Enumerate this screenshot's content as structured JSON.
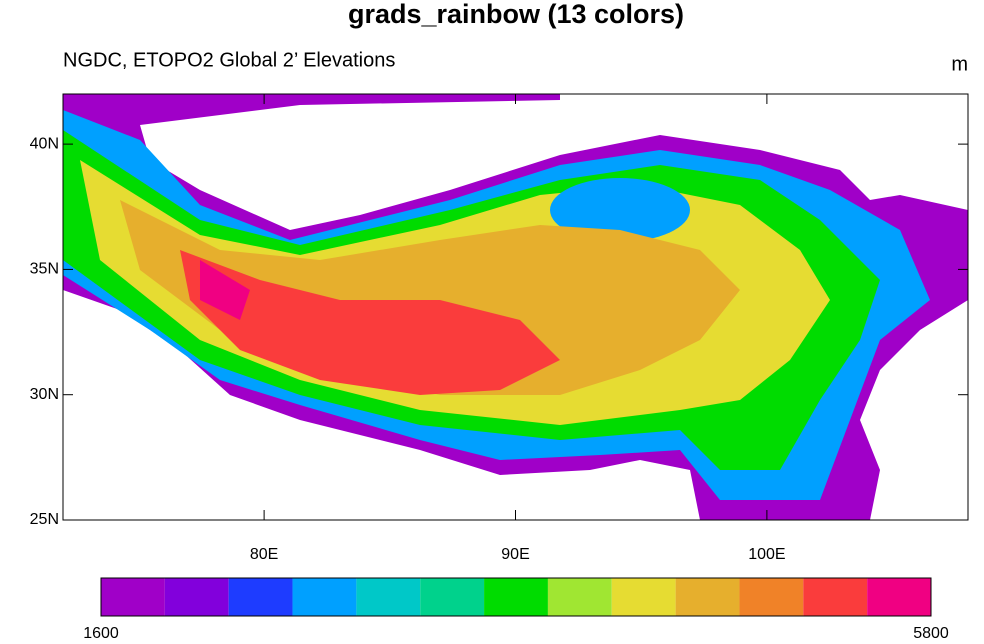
{
  "title": "grads_rainbow (13 colors)",
  "subtitle": "NGDC, ETOPO2 Global 2’ Elevations",
  "units": "m",
  "map": {
    "xlim": [
      72,
      108
    ],
    "ylim": [
      25,
      42
    ],
    "xticks": [
      {
        "value": 80,
        "label": "80E"
      },
      {
        "value": 90,
        "label": "90E"
      },
      {
        "value": 100,
        "label": "100E"
      }
    ],
    "yticks": [
      {
        "value": 25,
        "label": "25N"
      },
      {
        "value": 30,
        "label": "30N"
      },
      {
        "value": 35,
        "label": "35N"
      },
      {
        "value": 40,
        "label": "40N"
      }
    ]
  },
  "colorbar": {
    "colors": [
      "#a000c8",
      "#8200dc",
      "#1e3cff",
      "#00a0ff",
      "#00c8c8",
      "#00d28c",
      "#00dc00",
      "#a0e632",
      "#e6dc32",
      "#e6af2d",
      "#f08228",
      "#fa3c3c",
      "#f00082"
    ],
    "min": 1600,
    "max": 5800
  }
}
